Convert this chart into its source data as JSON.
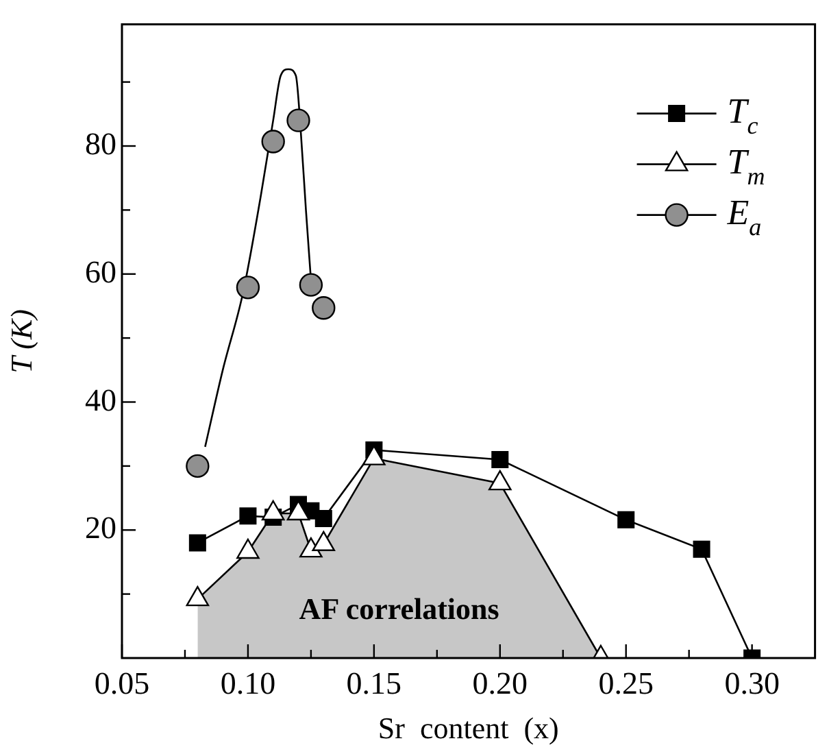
{
  "chart_data": {
    "type": "line",
    "xlabel": "Sr  content  (x)",
    "ylabel": "T (K)",
    "xlim": [
      0.05,
      0.325
    ],
    "xticks": [
      0.05,
      {
        "value": 0.075,
        "label": null
      },
      {
        "value": 0.1,
        "label": "0.10"
      },
      {
        "value": 0.125,
        "label": null
      },
      0.15,
      {
        "value": 0.175,
        "label": null
      },
      {
        "value": 0.2,
        "label": "0.20"
      },
      {
        "value": 0.225,
        "label": null
      },
      0.25,
      {
        "value": 0.275,
        "label": null
      },
      {
        "value": 0.3,
        "label": "0.30"
      }
    ],
    "ylim": [
      0,
      99
    ],
    "yticks": [
      {
        "value": 10,
        "label": null
      },
      20,
      {
        "value": 30,
        "label": null
      },
      40,
      {
        "value": 50,
        "label": null
      },
      60,
      {
        "value": 70,
        "label": null
      },
      80,
      {
        "value": 90,
        "label": null
      }
    ],
    "grid": false,
    "legend": "top right",
    "annotations": [
      "AF correlations"
    ],
    "series": [
      {
        "name": "T$_{c}$",
        "color": "#000000",
        "marker": "square",
        "x": [
          0.08,
          0.1,
          0.11,
          0.12,
          0.125,
          0.13,
          0.15,
          0.2,
          0.25,
          0.28,
          0.3
        ],
        "values": [
          18,
          22.2,
          22,
          24,
          23,
          21.8,
          32.5,
          31,
          21.6,
          17,
          0
        ]
      },
      {
        "name": "T$_{m}$",
        "type": "area",
        "color": "#000000",
        "marker": "triangle",
        "x": [
          0.08,
          0.1,
          0.11,
          0.12,
          0.125,
          0.13,
          0.15,
          0.2,
          0.24
        ],
        "values": [
          9.2,
          16.6,
          22.6,
          22.6,
          16.8,
          17.8,
          31.2,
          27.3,
          0
        ]
      },
      {
        "name": "E$_{a}$",
        "type": "scatter",
        "color": "#909090",
        "marker": "circle",
        "x": [
          0.08,
          0.1,
          0.11,
          0.12,
          0.125,
          0.13
        ],
        "values": [
          30,
          57.9,
          80.7,
          84,
          58.3,
          54.7
        ]
      },
      {
        "color": "#000000",
        "marker": "none",
        "x": [
          0.083,
          0.09,
          0.098,
          0.105,
          0.11,
          0.113,
          0.116,
          0.119,
          0.121,
          0.123,
          0.125
        ],
        "values": [
          33,
          45,
          57,
          72,
          84,
          91,
          92,
          91,
          82,
          70,
          59
        ]
      }
    ]
  }
}
